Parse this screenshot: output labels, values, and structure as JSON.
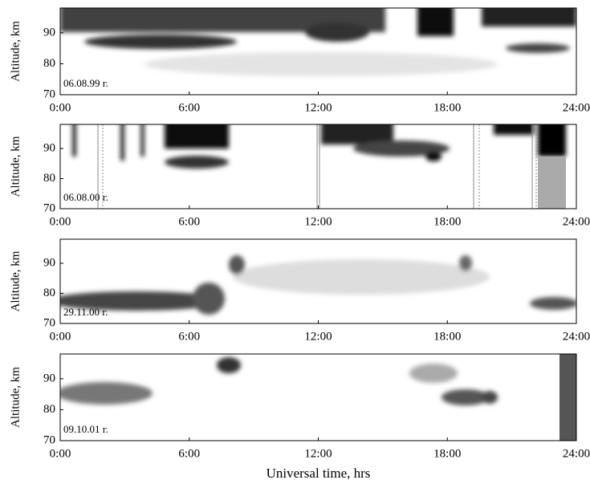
{
  "chart_data": [
    {
      "type": "heatmap",
      "ylabel": "Altitude, km",
      "annotation": "06.08.99 г.",
      "xlim": [
        0,
        24
      ],
      "xticks": [
        {
          "value": 0,
          "label": "0:00"
        },
        {
          "value": 6,
          "label": "6:00"
        },
        {
          "value": 12,
          "label": "12:00"
        },
        {
          "value": 18,
          "label": "18:00"
        },
        {
          "value": 24,
          "label": "24:00"
        }
      ],
      "ylim": [
        70,
        98
      ],
      "yticks": [
        70,
        80,
        90
      ]
    },
    {
      "type": "heatmap",
      "ylabel": "Altitude, km",
      "annotation": "06.08.00 г.",
      "xlim": [
        0,
        24
      ],
      "xticks": [
        {
          "value": 0,
          "label": "0:00"
        },
        {
          "value": 6,
          "label": "6:00"
        },
        {
          "value": 12,
          "label": "12:00"
        },
        {
          "value": 18,
          "label": "18:00"
        },
        {
          "value": 24,
          "label": "24:00"
        }
      ],
      "ylim": [
        70,
        98
      ],
      "yticks": [
        70,
        80,
        90
      ]
    },
    {
      "type": "heatmap",
      "ylabel": "Altitude, km",
      "annotation": "29.11.00 г.",
      "xlim": [
        0,
        24
      ],
      "xticks": [
        {
          "value": 0,
          "label": "0:00"
        },
        {
          "value": 6,
          "label": "6:00"
        },
        {
          "value": 12,
          "label": "12:00"
        },
        {
          "value": 18,
          "label": "18:00"
        },
        {
          "value": 24,
          "label": "24:00"
        }
      ],
      "ylim": [
        70,
        98
      ],
      "yticks": [
        70,
        80,
        90
      ]
    },
    {
      "type": "heatmap",
      "ylabel": "Altitude, km",
      "annotation": "09.10.01 г.",
      "xlabel": "Universal time, hrs",
      "xlim": [
        0,
        24
      ],
      "xticks": [
        {
          "value": 0,
          "label": "0:00"
        },
        {
          "value": 6,
          "label": "6:00"
        },
        {
          "value": 12,
          "label": "12:00"
        },
        {
          "value": 18,
          "label": "18:00"
        },
        {
          "value": 24,
          "label": "24:00"
        }
      ],
      "ylim": [
        70,
        98
      ],
      "yticks": [
        70,
        80,
        90
      ]
    }
  ]
}
